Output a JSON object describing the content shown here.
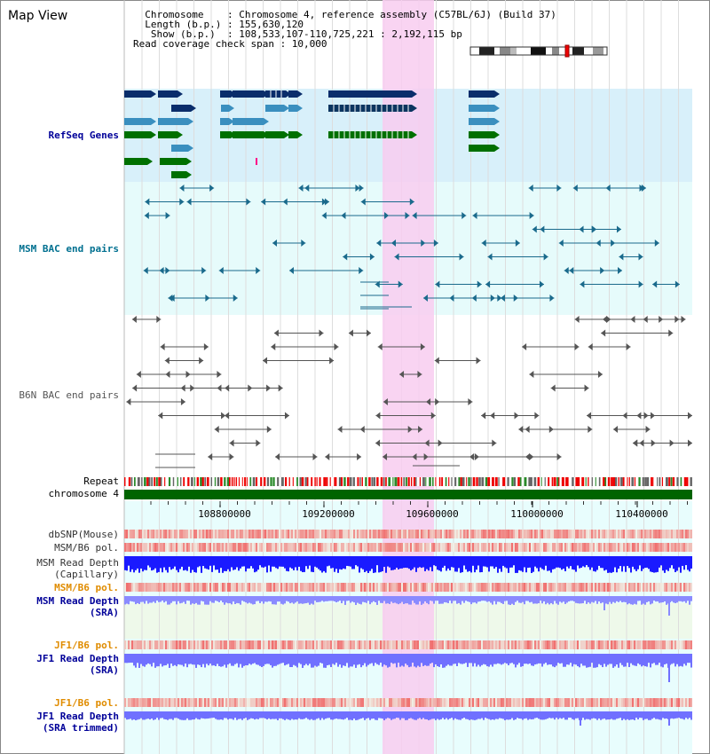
{
  "header": {
    "title": "Map View",
    "info_lines": [
      "  Chromosome    : Chromosome 4, reference assembly (C57BL/6J) (Build 37)",
      "  Length (b.p.) : 155,630,120",
      "   Show (b.p.)  : 108,533,107-110,725,221 : 2,192,115 bp",
      "Read coverage check span : 10,000"
    ]
  },
  "tracks": {
    "refseq": "RefSeq Genes",
    "msm_bac": "MSM BAC end pairs",
    "b6n_bac": "B6N BAC end pairs",
    "repeat": "Repeat",
    "chrom": "chromosome 4",
    "dbsnp": "dbSNP(Mouse)",
    "msm_b6_pol_1": "MSM/B6 pol.",
    "msm_depth_cap": "MSM Read Depth\n(Capillary)",
    "msm_b6_pol_2": "MSM/B6 pol.",
    "msm_depth_sra": "MSM Read Depth\n(SRA)",
    "jf1_b6_pol_1": "JF1/B6 pol.",
    "jf1_depth_sra": "JF1 Read Depth\n(SRA)",
    "jf1_b6_pol_2": "JF1/B6 pol.",
    "jf1_depth_trim": "JF1 Read Depth\n(SRA trimmed)"
  },
  "axis_ticks": [
    "108800000",
    "109200000",
    "109600000",
    "110000000",
    "110400000"
  ],
  "colors": {
    "refseq_bg": "#d8f0fa",
    "highlight": "#f8cdf0",
    "msm_gene_dark": "#0a2d6b",
    "msm_gene_mid": "#3a8fbf",
    "gene_green": "#007000",
    "bac_msm": "#1a6a8c",
    "bac_b6n": "#555555",
    "chrom_bar": "#006400",
    "depth_blue": "#1a1aff",
    "depth_light": "#7070ff",
    "label_navy": "#000099",
    "label_teal": "#007090",
    "label_orange": "#e08c00"
  }
}
